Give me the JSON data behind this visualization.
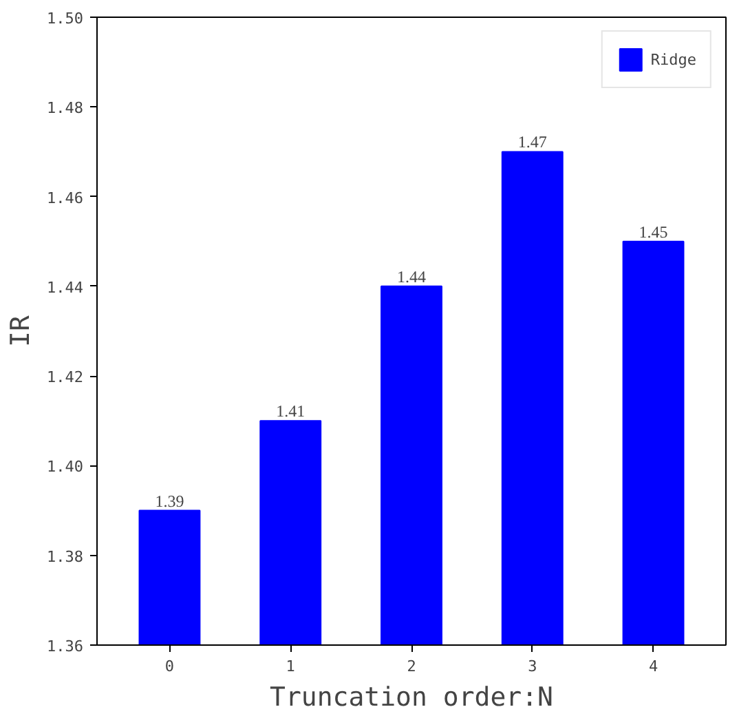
{
  "chart_data": {
    "type": "bar",
    "xlabel": "Truncation order:N",
    "ylabel": "IR",
    "categories": [
      "0",
      "1",
      "2",
      "3",
      "4"
    ],
    "series": [
      {
        "name": "Ridge",
        "color": "#0000ff",
        "values": [
          1.39,
          1.41,
          1.44,
          1.47,
          1.45
        ]
      }
    ],
    "ylim": [
      1.36,
      1.5
    ],
    "yticks": [
      {
        "value": 1.36,
        "label": "1.36"
      },
      {
        "value": 1.38,
        "label": "1.38"
      },
      {
        "value": 1.4,
        "label": "1.40"
      },
      {
        "value": 1.42,
        "label": "1.42"
      },
      {
        "value": 1.44,
        "label": "1.44"
      },
      {
        "value": 1.46,
        "label": "1.46"
      },
      {
        "value": 1.48,
        "label": "1.48"
      },
      {
        "value": 1.5,
        "label": "1.50"
      }
    ],
    "data_labels": true,
    "legend": "top right",
    "grid": false
  }
}
